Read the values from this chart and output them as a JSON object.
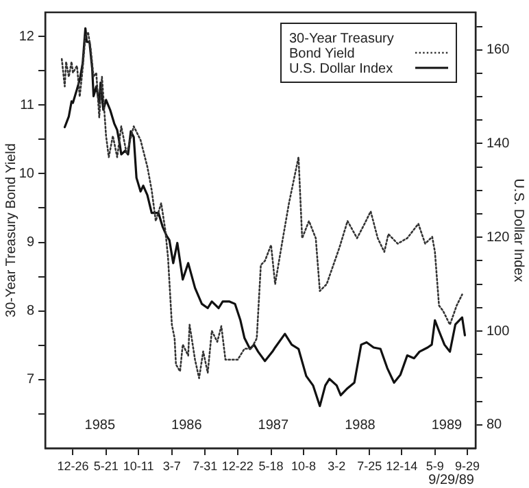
{
  "chart_data": {
    "type": "line",
    "ylabel": "30-Year Treasury Bond Yield",
    "y2label": "U.S. Dollar Index",
    "xlim": [
      "1984-08-26",
      "1989-11-04"
    ],
    "xticks": [
      {
        "value": "1984-12-26",
        "label": "12-26"
      },
      {
        "value": "1985-05-21",
        "label": "5-21"
      },
      {
        "value": "1985-10-11",
        "label": "10-11"
      },
      {
        "value": "1986-03-07",
        "label": "3-7"
      },
      {
        "value": "1986-07-31",
        "label": "7-31"
      },
      {
        "value": "1986-12-22",
        "label": "12-22"
      },
      {
        "value": "1987-05-18",
        "label": "5-18"
      },
      {
        "value": "1987-10-08",
        "label": "10-8"
      },
      {
        "value": "1988-03-02",
        "label": "3-2"
      },
      {
        "value": "1988-07-25",
        "label": "7-25"
      },
      {
        "value": "1988-12-14",
        "label": "12-14"
      },
      {
        "value": "1989-05-09",
        "label": "5-9"
      },
      {
        "value": "1989-09-29",
        "label": "9-29"
      }
    ],
    "ylim": [
      6,
      12.35
    ],
    "yticks": [
      {
        "value": 6.5,
        "label": null
      },
      7,
      {
        "value": 7.5,
        "label": null
      },
      8,
      {
        "value": 8.5,
        "label": null
      },
      9,
      {
        "value": 9.5,
        "label": null
      },
      10,
      {
        "value": 10.5,
        "label": null
      },
      11,
      {
        "value": 11.5,
        "label": null
      },
      12
    ],
    "y2lim": [
      75,
      168
    ],
    "y2ticks": [
      80,
      {
        "value": 85,
        "label": null
      },
      {
        "value": 90,
        "label": null
      },
      {
        "value": 95,
        "label": null
      },
      100,
      {
        "value": 105,
        "label": null
      },
      {
        "value": 110,
        "label": null
      },
      {
        "value": 115,
        "label": null
      },
      120,
      {
        "value": 125,
        "label": null
      },
      {
        "value": 130,
        "label": null
      },
      {
        "value": 135,
        "label": null
      },
      140,
      {
        "value": 145,
        "label": null
      },
      {
        "value": 150,
        "label": null
      },
      {
        "value": 155,
        "label": null
      },
      160,
      {
        "value": 165,
        "label": null
      }
    ],
    "grid": false,
    "legend": "top right",
    "marker": "none",
    "series": [
      {
        "name": "30-Year Treasury Bond Yield",
        "color": "#333333",
        "line_style": "dotted",
        "x": [
          "1984-11-07",
          "1984-11-20",
          "1984-11-26",
          "1984-12-08",
          "1984-12-20",
          "1984-12-26",
          "1985-01-13",
          "1985-01-25",
          "1985-02-07",
          "1985-02-19",
          "1985-03-03",
          "1985-03-15",
          "1985-03-27",
          "1985-04-08",
          "1985-04-21",
          "1985-05-03",
          "1985-05-21",
          "1985-06-02",
          "1985-06-20",
          "1985-07-09",
          "1985-07-27",
          "1985-08-20",
          "1985-09-20",
          "1985-10-20",
          "1985-11-19",
          "1985-12-08",
          "1985-12-26",
          "1986-01-19",
          "1986-02-06",
          "1986-02-18",
          "1986-03-07",
          "1986-03-19",
          "1986-03-25",
          "1986-04-12",
          "1986-04-24",
          "1986-05-18",
          "1986-05-24",
          "1986-06-17",
          "1986-07-05",
          "1986-07-23",
          "1986-08-12",
          "1986-08-30",
          "1986-09-23",
          "1986-10-11",
          "1986-10-29",
          "1986-11-16",
          "1986-12-22",
          "1987-01-21",
          "1987-02-20",
          "1987-03-16",
          "1987-04-03",
          "1987-04-21",
          "1987-05-18",
          "1987-06-05",
          "1987-07-05",
          "1987-08-05",
          "1987-09-16",
          "1987-10-02",
          "1987-11-01",
          "1987-12-01",
          "1987-12-19",
          "1988-01-18",
          "1988-03-14",
          "1988-04-19",
          "1988-05-31",
          "1988-06-30",
          "1988-07-30",
          "1988-08-30",
          "1988-09-28",
          "1988-10-16",
          "1988-11-26",
          "1989-01-07",
          "1989-02-25",
          "1989-03-27",
          "1989-04-27",
          "1989-05-09",
          "1989-05-27",
          "1989-06-14",
          "1989-07-14",
          "1989-08-13",
          "1989-09-06"
        ],
        "values": [
          11.67,
          11.27,
          11.63,
          11.41,
          11.63,
          11.47,
          11.57,
          11.12,
          11.53,
          12.0,
          12.06,
          11.8,
          11.41,
          11.47,
          10.82,
          11.41,
          10.55,
          10.24,
          10.55,
          10.24,
          10.69,
          10.29,
          10.69,
          10.49,
          10.1,
          9.76,
          9.31,
          9.57,
          9.18,
          8.78,
          7.8,
          7.6,
          7.22,
          7.12,
          7.51,
          7.35,
          7.8,
          7.29,
          7.02,
          7.41,
          7.1,
          7.71,
          7.55,
          7.78,
          7.29,
          7.29,
          7.29,
          7.45,
          7.45,
          7.6,
          8.67,
          8.73,
          8.96,
          8.39,
          8.98,
          9.57,
          10.24,
          9.06,
          9.31,
          9.06,
          8.29,
          8.39,
          8.92,
          9.31,
          9.06,
          9.25,
          9.45,
          9.06,
          8.86,
          9.12,
          8.98,
          9.06,
          9.27,
          8.98,
          9.08,
          8.86,
          8.08,
          8.0,
          7.8,
          8.08,
          8.24
        ]
      },
      {
        "name": "U.S. Dollar Index",
        "color": "#111111",
        "line_style": "solid",
        "axis": "y2",
        "x": [
          "1984-11-20",
          "1984-12-08",
          "1984-12-20",
          "1984-12-26",
          "1985-01-13",
          "1985-01-25",
          "1985-02-07",
          "1985-02-19",
          "1985-02-25",
          "1985-03-09",
          "1985-03-21",
          "1985-03-27",
          "1985-04-08",
          "1985-04-21",
          "1985-04-27",
          "1985-05-09",
          "1985-05-21",
          "1985-06-08",
          "1985-06-26",
          "1985-07-09",
          "1985-07-21",
          "1985-07-27",
          "1985-08-14",
          "1985-08-26",
          "1985-09-07",
          "1985-09-20",
          "1985-10-02",
          "1985-10-20",
          "1985-11-01",
          "1985-11-19",
          "1985-12-08",
          "1986-01-07",
          "1986-01-25",
          "1986-02-12",
          "1986-02-24",
          "1986-03-13",
          "1986-03-31",
          "1986-04-24",
          "1986-05-18",
          "1986-06-17",
          "1986-07-17",
          "1986-08-12",
          "1986-08-30",
          "1986-09-29",
          "1986-10-17",
          "1986-11-16",
          "1986-12-10",
          "1987-01-03",
          "1987-01-21",
          "1987-02-14",
          "1987-03-04",
          "1987-03-22",
          "1987-04-21",
          "1987-05-24",
          "1987-06-05",
          "1987-07-18",
          "1987-08-17",
          "1987-09-16",
          "1987-10-20",
          "1987-11-19",
          "1987-12-19",
          "1988-01-12",
          "1988-01-30",
          "1988-03-02",
          "1988-03-20",
          "1988-04-19",
          "1988-05-19",
          "1988-06-18",
          "1988-07-12",
          "1988-08-12",
          "1988-09-11",
          "1988-10-11",
          "1988-11-10",
          "1988-12-08",
          "1989-01-07",
          "1989-02-06",
          "1989-03-02",
          "1989-04-07",
          "1989-04-25",
          "1989-05-09",
          "1989-05-27",
          "1989-06-20",
          "1989-07-14",
          "1989-08-07",
          "1989-09-06",
          "1989-09-18"
        ],
        "values": [
          143.5,
          145.8,
          149,
          148.7,
          151.6,
          153.6,
          157.1,
          164.6,
          161.7,
          161.7,
          156,
          150.1,
          152.2,
          148.7,
          153,
          147.2,
          149.3,
          147.2,
          144.3,
          142.9,
          139.7,
          137.7,
          138.5,
          137.7,
          142.6,
          141.4,
          132.7,
          129.8,
          131,
          129,
          125.2,
          125.2,
          122.3,
          120.3,
          119.4,
          114.5,
          118.8,
          111,
          114.5,
          109.2,
          105.8,
          104.9,
          106.3,
          104.9,
          106.3,
          106.3,
          105.8,
          102.3,
          98.5,
          96.2,
          97.1,
          95.6,
          93.6,
          95.6,
          96.5,
          99.4,
          97.1,
          96.2,
          90.4,
          88.4,
          84,
          88.4,
          89.8,
          88.4,
          86.3,
          87.8,
          89,
          97.1,
          97.6,
          96.5,
          96.2,
          92.1,
          89,
          90.7,
          94.8,
          94.2,
          95.6,
          96.5,
          97.1,
          102.3,
          100,
          97.1,
          95.6,
          101.4,
          102.9,
          99.1
        ]
      }
    ],
    "annotations": [
      "1985",
      "1986",
      "1987",
      "1988",
      "1989",
      "9/29/89"
    ]
  }
}
